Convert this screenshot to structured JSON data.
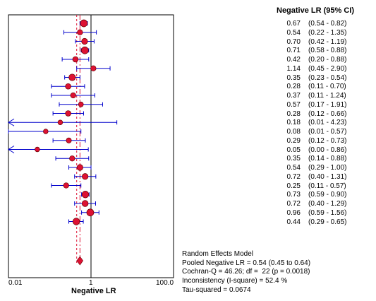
{
  "chart_data": {
    "type": "forest",
    "column_header": "Negative LR (95% CI)",
    "xlabel": "Negative LR",
    "x_scale": "log",
    "xlim": [
      0.01,
      100
    ],
    "xticks": [
      "0.01",
      "1",
      "100.0"
    ],
    "reference_line": 1,
    "studies": [
      {
        "lr": "0.67",
        "ci": "(0.54 - 0.82)",
        "value": 0.67,
        "lo": 0.54,
        "hi": 0.82,
        "weight": 1.0
      },
      {
        "lr": "0.54",
        "ci": "(0.22 - 1.35)",
        "value": 0.54,
        "lo": 0.22,
        "hi": 1.35,
        "weight": 0.6
      },
      {
        "lr": "0.70",
        "ci": "(0.42 - 1.19)",
        "value": 0.7,
        "lo": 0.42,
        "hi": 1.19,
        "weight": 0.75
      },
      {
        "lr": "0.71",
        "ci": "(0.58 - 0.88)",
        "value": 0.71,
        "lo": 0.58,
        "hi": 0.88,
        "weight": 1.0
      },
      {
        "lr": "0.42",
        "ci": "(0.20 - 0.88)",
        "value": 0.42,
        "lo": 0.2,
        "hi": 0.88,
        "weight": 0.65
      },
      {
        "lr": "1.14",
        "ci": "(0.45 - 2.90)",
        "value": 1.14,
        "lo": 0.45,
        "hi": 2.9,
        "weight": 0.6
      },
      {
        "lr": "0.35",
        "ci": "(0.23 - 0.54)",
        "value": 0.35,
        "lo": 0.23,
        "hi": 0.54,
        "weight": 0.9
      },
      {
        "lr": "0.28",
        "ci": "(0.11 - 0.70)",
        "value": 0.28,
        "lo": 0.11,
        "hi": 0.7,
        "weight": 0.65
      },
      {
        "lr": "0.37",
        "ci": "(0.11 - 1.24)",
        "value": 0.37,
        "lo": 0.11,
        "hi": 1.24,
        "weight": 0.6
      },
      {
        "lr": "0.57",
        "ci": "(0.17 - 1.91)",
        "value": 0.57,
        "lo": 0.17,
        "hi": 1.91,
        "weight": 0.5
      },
      {
        "lr": "0.28",
        "ci": "(0.12 - 0.66)",
        "value": 0.28,
        "lo": 0.12,
        "hi": 0.66,
        "weight": 0.65
      },
      {
        "lr": "0.18",
        "ci": "(0.01 - 4.23)",
        "value": 0.18,
        "lo": 0.01,
        "hi": 4.23,
        "weight": 0.45,
        "arrow_left": true
      },
      {
        "lr": "0.08",
        "ci": "(0.01 - 0.57)",
        "value": 0.08,
        "lo": 0.01,
        "hi": 0.57,
        "weight": 0.45
      },
      {
        "lr": "0.29",
        "ci": "(0.12 - 0.73)",
        "value": 0.29,
        "lo": 0.12,
        "hi": 0.73,
        "weight": 0.55
      },
      {
        "lr": "0.05",
        "ci": "(0.00 - 0.86)",
        "value": 0.05,
        "lo": 0.0,
        "hi": 0.86,
        "weight": 0.45,
        "arrow_left": true
      },
      {
        "lr": "0.35",
        "ci": "(0.14 - 0.88)",
        "value": 0.35,
        "lo": 0.14,
        "hi": 0.88,
        "weight": 0.6
      },
      {
        "lr": "0.54",
        "ci": "(0.29 - 1.00)",
        "value": 0.54,
        "lo": 0.29,
        "hi": 1.0,
        "weight": 0.75
      },
      {
        "lr": "0.72",
        "ci": "(0.40 - 1.31)",
        "value": 0.72,
        "lo": 0.4,
        "hi": 1.31,
        "weight": 0.75
      },
      {
        "lr": "0.25",
        "ci": "(0.11 - 0.57)",
        "value": 0.25,
        "lo": 0.11,
        "hi": 0.57,
        "weight": 0.6
      },
      {
        "lr": "0.73",
        "ci": "(0.59 - 0.90)",
        "value": 0.73,
        "lo": 0.59,
        "hi": 0.9,
        "weight": 0.95
      },
      {
        "lr": "0.72",
        "ci": "(0.40 - 1.29)",
        "value": 0.72,
        "lo": 0.4,
        "hi": 1.29,
        "weight": 0.8
      },
      {
        "lr": "0.96",
        "ci": "(0.59 - 1.56)",
        "value": 0.96,
        "lo": 0.59,
        "hi": 1.56,
        "weight": 1.0
      },
      {
        "lr": "0.44",
        "ci": "(0.29 - 0.65)",
        "value": 0.44,
        "lo": 0.29,
        "hi": 0.65,
        "weight": 0.95
      }
    ],
    "pooled": {
      "value": 0.54,
      "lo": 0.45,
      "hi": 0.64
    },
    "colors": {
      "marker": "#dd1133",
      "ci_line": "#0000cc",
      "pooled_line": "#dd1133",
      "reference": "#000000"
    }
  },
  "stats": {
    "model": "Random Effects Model",
    "pooled": "Pooled Negative LR = 0.54 (0.45 to 0.64)",
    "cochran": "Cochran-Q = 46.26; df =  22 (p = 0.0018)",
    "inconsistency": "Inconsistency (I-square) = 52.4 %",
    "tau": "Tau-squared = 0.0674"
  }
}
